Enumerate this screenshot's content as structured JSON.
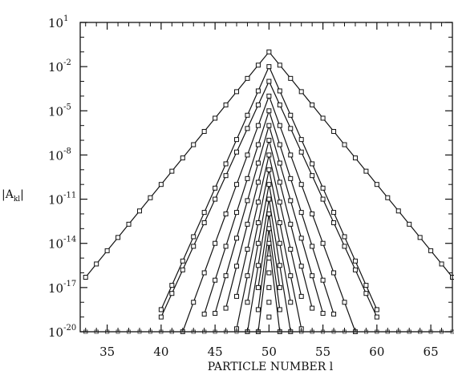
{
  "chart_data": {
    "type": "line",
    "title": "",
    "xlabel": "PARTICLE NUMBER l",
    "ylabel": "|A",
    "ylabel_sub": "kl",
    "ylabel_close": "|",
    "xlim": [
      32.5,
      67
    ],
    "ylim_log10": [
      -20,
      1
    ],
    "yscale": "log",
    "grid": false,
    "legend": "none",
    "x_ticks": [
      "35",
      "40",
      "45",
      "50",
      "55",
      "60",
      "65"
    ],
    "y_ticks": [
      {
        "base": "10",
        "exp": "1"
      },
      {
        "base": "10",
        "exp": "-2"
      },
      {
        "base": "10",
        "exp": "-5"
      },
      {
        "base": "10",
        "exp": "-8"
      },
      {
        "base": "10",
        "exp": "-11"
      },
      {
        "base": "10",
        "exp": "-14"
      },
      {
        "base": "10",
        "exp": "-17"
      },
      {
        "base": "10",
        "exp": "-20"
      }
    ],
    "marker": "open-square",
    "line_color": "#111111",
    "center": 50,
    "floor_log10": -20,
    "series": [
      {
        "peak_log10": -1.0,
        "decay_per_particle": 0.9
      },
      {
        "peak_log10": -2.0,
        "decay_per_particle": 1.65
      },
      {
        "peak_log10": -3.0,
        "decay_per_particle": 1.6
      },
      {
        "peak_log10": -4.0,
        "decay_per_particle": 2.0
      },
      {
        "peak_log10": -5.0,
        "decay_per_particle": 2.3
      },
      {
        "peak_log10": -6.0,
        "decay_per_particle": 2.55
      },
      {
        "peak_log10": -7.0,
        "decay_per_particle": 2.85
      },
      {
        "peak_log10": -8.0,
        "decay_per_particle": 3.2
      },
      {
        "peak_log10": -9.0,
        "decay_per_particle": 3.6
      },
      {
        "peak_log10": -10.0,
        "decay_per_particle": 4.0
      },
      {
        "peak_log10": -11.0,
        "decay_per_particle": 4.5
      },
      {
        "peak_log10": -12.0,
        "decay_per_particle": 5.0
      },
      {
        "peak_log10": -13.0,
        "decay_per_particle": 5.5
      },
      {
        "peak_log10": -14.0,
        "decay_per_particle": 6.0
      },
      {
        "peak_log10": -15.0,
        "decay_per_particle": 6.5
      },
      {
        "peak_log10": -16.0,
        "decay_per_particle": 7.0
      },
      {
        "peak_log10": -17.0,
        "decay_per_particle": 7.5
      },
      {
        "peak_log10": -18.0,
        "decay_per_particle": 8.0
      },
      {
        "peak_log10": -19.0,
        "decay_per_particle": 9.0
      }
    ]
  }
}
